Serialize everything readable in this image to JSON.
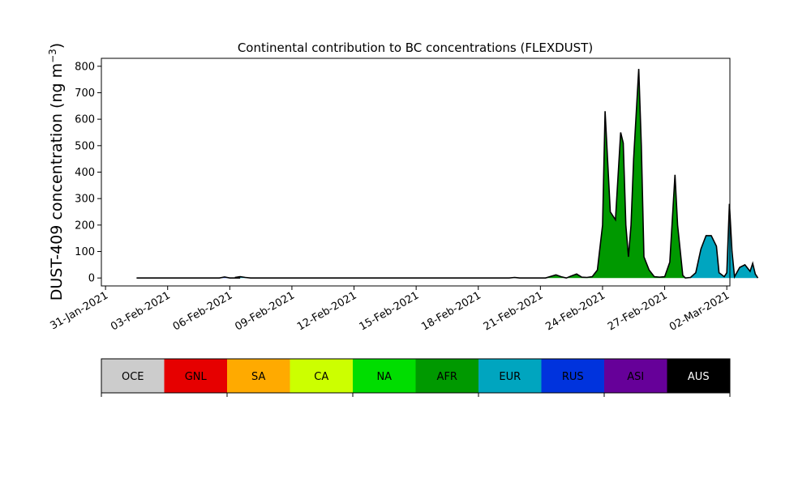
{
  "chart_data": {
    "type": "area",
    "title": "Continental contribution to BC concentrations (FLEXDUST)",
    "ylabel": "DUST-409 concentration (ng m",
    "ylabel_exponent": "−3",
    "ylabel_close": ")",
    "xlabel": "",
    "xlim": [
      "2021-01-31",
      "2021-03-02"
    ],
    "ylim": [
      -30,
      830
    ],
    "grid": false,
    "x_ticks": [
      {
        "date": "2021-01-31",
        "label": "31-Jan-2021"
      },
      {
        "date": "2021-02-03",
        "label": "03-Feb-2021"
      },
      {
        "date": "2021-02-06",
        "label": "06-Feb-2021"
      },
      {
        "date": "2021-02-09",
        "label": "09-Feb-2021"
      },
      {
        "date": "2021-02-12",
        "label": "12-Feb-2021"
      },
      {
        "date": "2021-02-15",
        "label": "15-Feb-2021"
      },
      {
        "date": "2021-02-18",
        "label": "18-Feb-2021"
      },
      {
        "date": "2021-02-21",
        "label": "21-Feb-2021"
      },
      {
        "date": "2021-02-24",
        "label": "24-Feb-2021"
      },
      {
        "date": "2021-02-27",
        "label": "27-Feb-2021"
      },
      {
        "date": "2021-03-02",
        "label": "02-Mar-2021"
      }
    ],
    "y_ticks": [
      0,
      100,
      200,
      300,
      400,
      500,
      600,
      700,
      800
    ],
    "y_tick_labels": [
      "0",
      "100",
      "200",
      "300",
      "400",
      "500",
      "600",
      "700",
      "800"
    ],
    "legend": {
      "placement": "bottom colorbar",
      "entries": [
        {
          "name": "OCE",
          "color": "#cccccc",
          "text_color": "#000000"
        },
        {
          "name": "GNL",
          "color": "#e60000",
          "text_color": "#000000"
        },
        {
          "name": "SA",
          "color": "#ffaa00",
          "text_color": "#000000"
        },
        {
          "name": "CA",
          "color": "#ccff00",
          "text_color": "#000000"
        },
        {
          "name": "NA",
          "color": "#00dd00",
          "text_color": "#000000"
        },
        {
          "name": "AFR",
          "color": "#009900",
          "text_color": "#000000"
        },
        {
          "name": "EUR",
          "color": "#00a5bf",
          "text_color": "#000000"
        },
        {
          "name": "RUS",
          "color": "#0033dd",
          "text_color": "#000000"
        },
        {
          "name": "ASI",
          "color": "#660099",
          "text_color": "#000000"
        },
        {
          "name": "AUS",
          "color": "#000000",
          "text_color": "#ffffff"
        }
      ]
    },
    "segments": [
      {
        "region": "RUS",
        "points": [
          [
            "2021-02-01 12:00",
            0
          ],
          [
            "2021-02-05 12:00",
            0
          ],
          [
            "2021-02-05 18:00",
            4
          ],
          [
            "2021-02-06 00:00",
            0
          ],
          [
            "2021-02-06 12:00",
            0
          ]
        ]
      },
      {
        "region": "EUR",
        "points": [
          [
            "2021-02-06 12:00",
            0
          ],
          [
            "2021-02-06 06:00",
            2
          ],
          [
            "2021-02-06 12:00",
            5
          ],
          [
            "2021-02-06 18:00",
            2
          ],
          [
            "2021-02-07 00:00",
            0
          ],
          [
            "2021-02-19 12:00",
            0
          ],
          [
            "2021-02-19 18:00",
            2
          ],
          [
            "2021-02-20 00:00",
            0
          ],
          [
            "2021-02-21 06:00",
            0
          ]
        ]
      },
      {
        "region": "AFR",
        "points": [
          [
            "2021-02-21 06:00",
            0
          ],
          [
            "2021-02-21 18:00",
            12
          ],
          [
            "2021-02-22 00:00",
            5
          ],
          [
            "2021-02-22 06:00",
            0
          ],
          [
            "2021-02-22 12:00",
            8
          ],
          [
            "2021-02-22 18:00",
            15
          ],
          [
            "2021-02-23 00:00",
            3
          ],
          [
            "2021-02-23 06:00",
            2
          ],
          [
            "2021-02-23 12:00",
            5
          ],
          [
            "2021-02-23 18:00",
            30
          ],
          [
            "2021-02-24 00:00",
            200
          ],
          [
            "2021-02-24 03:00",
            630
          ],
          [
            "2021-02-24 09:00",
            250
          ],
          [
            "2021-02-24 15:00",
            220
          ],
          [
            "2021-02-24 21:00",
            550
          ],
          [
            "2021-02-25 00:00",
            510
          ],
          [
            "2021-02-25 03:00",
            200
          ],
          [
            "2021-02-25 06:00",
            80
          ],
          [
            "2021-02-25 09:00",
            200
          ],
          [
            "2021-02-25 12:00",
            450
          ],
          [
            "2021-02-25 18:00",
            790
          ],
          [
            "2021-02-25 21:00",
            500
          ],
          [
            "2021-02-26 00:00",
            80
          ],
          [
            "2021-02-26 06:00",
            30
          ],
          [
            "2021-02-26 12:00",
            5
          ],
          [
            "2021-02-26 18:00",
            3
          ],
          [
            "2021-02-27 00:00",
            5
          ],
          [
            "2021-02-27 06:00",
            60
          ],
          [
            "2021-02-27 12:00",
            390
          ],
          [
            "2021-02-27 15:00",
            200
          ],
          [
            "2021-02-27 21:00",
            10
          ],
          [
            "2021-02-28 00:00",
            0
          ]
        ]
      },
      {
        "region": "EUR",
        "points": [
          [
            "2021-02-28 00:00",
            0
          ],
          [
            "2021-02-28 06:00",
            2
          ],
          [
            "2021-02-28 12:00",
            20
          ],
          [
            "2021-02-28 18:00",
            110
          ],
          [
            "2021-03-01 00:00",
            160
          ],
          [
            "2021-03-01 06:00",
            160
          ],
          [
            "2021-03-01 12:00",
            120
          ],
          [
            "2021-03-01 15:00",
            20
          ],
          [
            "2021-03-01 21:00",
            5
          ],
          [
            "2021-03-02 00:00",
            20
          ],
          [
            "2021-03-02 03:00",
            280
          ],
          [
            "2021-03-02 06:00",
            100
          ],
          [
            "2021-03-02 09:00",
            5
          ],
          [
            "2021-03-02 15:00",
            40
          ],
          [
            "2021-03-02 21:00",
            50
          ],
          [
            "2021-03-03 03:00",
            25
          ],
          [
            "2021-03-03 06:00",
            55
          ],
          [
            "2021-03-03 09:00",
            15
          ],
          [
            "2021-03-03 12:00",
            0
          ]
        ]
      }
    ]
  }
}
